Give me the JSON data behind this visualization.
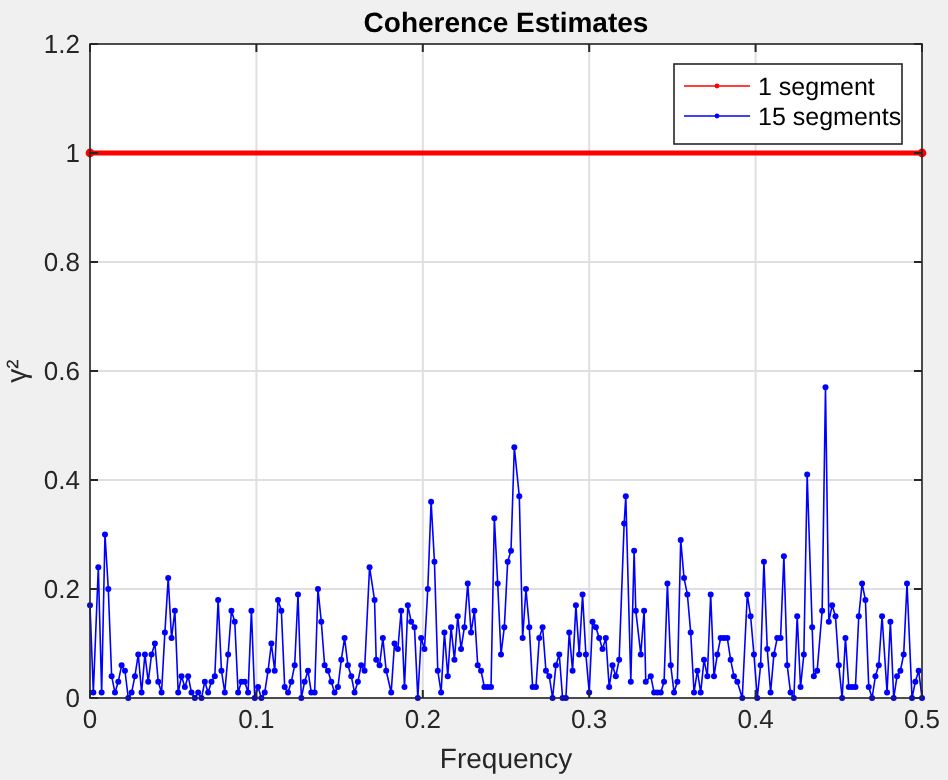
{
  "chart_data": {
    "type": "line",
    "title": "Coherence Estimates",
    "xlabel": "Frequency",
    "ylabel": "γ²",
    "xlim": [
      0,
      0.5
    ],
    "xticks": [
      0,
      0.1,
      0.2,
      0.3,
      0.4,
      0.5
    ],
    "ylim": [
      0,
      1.2
    ],
    "yticks": [
      0,
      0.2,
      0.4,
      0.6,
      0.8,
      1,
      1.2
    ],
    "grid": true,
    "legend": "top right",
    "marker": "circle",
    "line_style": "solid",
    "series": [
      {
        "name": "1 segment",
        "color": "#ff0000",
        "x": [
          0,
          0.5
        ],
        "values": [
          1,
          1
        ]
      },
      {
        "name": "15 segments",
        "color": "#0000ff",
        "x": [
          0,
          0.002,
          0.005,
          0.007,
          0.009,
          0.011,
          0.013,
          0.015,
          0.017,
          0.019,
          0.021,
          0.023,
          0.025,
          0.027,
          0.029,
          0.031,
          0.033,
          0.035,
          0.037,
          0.039,
          0.041,
          0.043,
          0.045,
          0.047,
          0.049,
          0.051,
          0.053,
          0.055,
          0.057,
          0.059,
          0.061,
          0.063,
          0.065,
          0.067,
          0.069,
          0.071,
          0.073,
          0.075,
          0.077,
          0.079,
          0.081,
          0.083,
          0.085,
          0.087,
          0.089,
          0.091,
          0.093,
          0.095,
          0.097,
          0.099,
          0.101,
          0.103,
          0.105,
          0.107,
          0.109,
          0.111,
          0.113,
          0.115,
          0.117,
          0.119,
          0.121,
          0.123,
          0.125,
          0.127,
          0.129,
          0.131,
          0.133,
          0.135,
          0.137,
          0.139,
          0.141,
          0.143,
          0.145,
          0.147,
          0.149,
          0.151,
          0.153,
          0.155,
          0.157,
          0.159,
          0.161,
          0.163,
          0.165,
          0.168,
          0.171,
          0.172,
          0.174,
          0.176,
          0.178,
          0.181,
          0.183,
          0.185,
          0.187,
          0.189,
          0.191,
          0.193,
          0.195,
          0.197,
          0.199,
          0.201,
          0.203,
          0.205,
          0.207,
          0.209,
          0.211,
          0.213,
          0.215,
          0.217,
          0.219,
          0.221,
          0.223,
          0.225,
          0.227,
          0.229,
          0.231,
          0.233,
          0.235,
          0.237,
          0.239,
          0.241,
          0.243,
          0.245,
          0.247,
          0.249,
          0.251,
          0.253,
          0.255,
          0.258,
          0.26,
          0.262,
          0.264,
          0.266,
          0.268,
          0.27,
          0.272,
          0.274,
          0.276,
          0.278,
          0.28,
          0.282,
          0.284,
          0.286,
          0.288,
          0.29,
          0.292,
          0.294,
          0.296,
          0.298,
          0.3,
          0.302,
          0.304,
          0.306,
          0.308,
          0.31,
          0.312,
          0.314,
          0.316,
          0.318,
          0.321,
          0.322,
          0.325,
          0.327,
          0.328,
          0.331,
          0.333,
          0.334,
          0.337,
          0.339,
          0.341,
          0.343,
          0.345,
          0.347,
          0.349,
          0.351,
          0.353,
          0.355,
          0.357,
          0.359,
          0.361,
          0.363,
          0.365,
          0.367,
          0.369,
          0.371,
          0.373,
          0.375,
          0.377,
          0.379,
          0.381,
          0.383,
          0.385,
          0.387,
          0.389,
          0.392,
          0.395,
          0.397,
          0.399,
          0.401,
          0.403,
          0.405,
          0.407,
          0.409,
          0.411,
          0.413,
          0.415,
          0.417,
          0.419,
          0.421,
          0.423,
          0.425,
          0.427,
          0.429,
          0.431,
          0.434,
          0.435,
          0.437,
          0.44,
          0.442,
          0.444,
          0.446,
          0.448,
          0.45,
          0.452,
          0.454,
          0.456,
          0.458,
          0.46,
          0.462,
          0.464,
          0.466,
          0.468,
          0.47,
          0.472,
          0.474,
          0.476,
          0.479,
          0.481,
          0.483,
          0.485,
          0.487,
          0.489,
          0.491,
          0.494,
          0.496,
          0.498,
          0.5
        ],
        "values": [
          0.17,
          0.01,
          0.24,
          0.01,
          0.3,
          0.2,
          0.04,
          0.01,
          0.03,
          0.06,
          0.05,
          0,
          0.01,
          0.04,
          0.08,
          0.01,
          0.08,
          0.03,
          0.08,
          0.1,
          0.03,
          0.01,
          0.12,
          0.22,
          0.11,
          0.16,
          0.01,
          0.04,
          0.02,
          0.04,
          0.01,
          0,
          0.01,
          0,
          0.03,
          0.01,
          0.03,
          0.04,
          0.18,
          0.05,
          0.01,
          0.08,
          0.16,
          0.14,
          0.01,
          0.03,
          0.03,
          0.01,
          0.16,
          0,
          0.02,
          0,
          0.01,
          0.05,
          0.1,
          0.05,
          0.18,
          0.16,
          0.02,
          0.01,
          0.03,
          0.06,
          0.19,
          0,
          0.03,
          0.05,
          0.01,
          0.01,
          0.2,
          0.14,
          0.06,
          0.05,
          0.03,
          0.01,
          0.02,
          0.07,
          0.11,
          0.06,
          0.04,
          0.01,
          0.03,
          0.06,
          0.05,
          0.24,
          0.18,
          0.07,
          0.06,
          0.11,
          0.05,
          0.01,
          0.1,
          0.09,
          0.16,
          0.02,
          0.17,
          0.14,
          0.13,
          0,
          0.11,
          0.09,
          0.2,
          0.36,
          0.25,
          0.05,
          0.01,
          0.12,
          0.04,
          0.13,
          0.07,
          0.15,
          0.09,
          0.13,
          0.21,
          0.12,
          0.16,
          0.06,
          0.05,
          0.02,
          0.02,
          0.02,
          0.33,
          0.21,
          0.08,
          0.13,
          0.25,
          0.27,
          0.46,
          0.37,
          0.11,
          0.2,
          0.13,
          0.02,
          0.02,
          0.11,
          0.13,
          0.05,
          0.04,
          0,
          0.06,
          0.08,
          0,
          0,
          0.12,
          0.05,
          0.17,
          0.08,
          0.19,
          0.08,
          0.01,
          0.14,
          0.13,
          0.11,
          0.09,
          0.11,
          0.02,
          0.06,
          0.04,
          0.07,
          0.32,
          0.37,
          0.03,
          0.27,
          0.16,
          0.08,
          0.16,
          0.03,
          0.04,
          0.01,
          0.01,
          0.01,
          0.03,
          0.21,
          0.06,
          0.01,
          0.03,
          0.29,
          0.22,
          0.19,
          0.12,
          0.01,
          0.05,
          0.01,
          0.07,
          0.04,
          0.19,
          0.04,
          0.08,
          0.11,
          0.11,
          0.11,
          0.07,
          0.04,
          0.03,
          0,
          0.19,
          0.15,
          0.08,
          0,
          0.06,
          0.25,
          0.09,
          0.01,
          0.08,
          0.11,
          0.11,
          0.26,
          0.06,
          0.01,
          0,
          0.15,
          0.02,
          0.08,
          0.41,
          0.13,
          0.04,
          0.05,
          0.16,
          0.57,
          0.14,
          0.17,
          0.15,
          0.06,
          0,
          0.11,
          0.02,
          0.02,
          0.02,
          0.15,
          0.21,
          0.18,
          0.02,
          0,
          0.04,
          0.06,
          0.15,
          0.01,
          0.14,
          0,
          0.04,
          0.05,
          0.08,
          0.21,
          0,
          0.03,
          0.05,
          0
        ]
      }
    ]
  }
}
